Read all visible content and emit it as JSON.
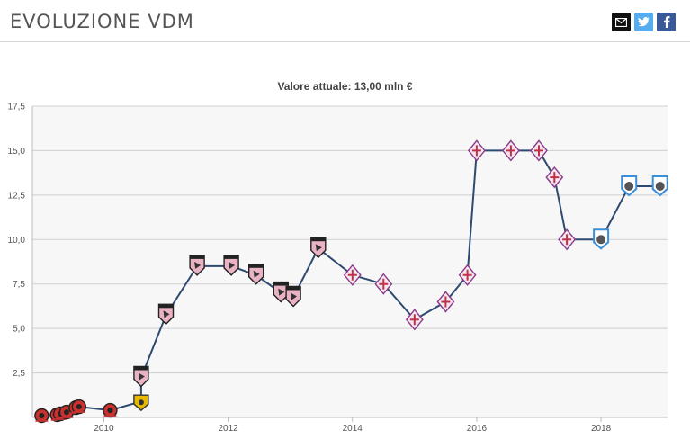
{
  "header": {
    "title": "EVOLUZIONE VDM",
    "share": {
      "email_icon": "email-icon",
      "twitter_icon": "twitter-icon",
      "facebook_icon": "facebook-icon"
    }
  },
  "colors": {
    "line": "#2e4a70",
    "grid": "#d0d0d0",
    "plot_bg": "#f7f7f7",
    "palermo": "#e9b3c4",
    "fiorentina": "#8a3a8a",
    "atalanta": "#3b8fd8",
    "reggina": "#c8312e",
    "juve_stabia": "#e6b800"
  },
  "chart_data": {
    "type": "line",
    "title": "Valore attuale: 13,00 mln €",
    "xlabel": "",
    "ylabel": "",
    "xlim": [
      2008.85,
      2019.07
    ],
    "ylim": [
      0,
      17.5
    ],
    "x_ticks": [
      2010,
      2012,
      2014,
      2016,
      2018
    ],
    "x_tick_labels": [
      "2010",
      "2012",
      "2014",
      "2016",
      "2018"
    ],
    "y_ticks": [
      2.5,
      5.0,
      7.5,
      10.0,
      12.5,
      15.0,
      17.5
    ],
    "y_tick_labels": [
      "2,5",
      "5,0",
      "7,5",
      "10,0",
      "12,5",
      "15,0",
      "17,5"
    ],
    "grid": true,
    "series": [
      {
        "points": [
          {
            "x": 2009.0,
            "y": 0.1,
            "club": "reggina"
          },
          {
            "x": 2009.25,
            "y": 0.15,
            "club": "reggina"
          },
          {
            "x": 2009.3,
            "y": 0.2,
            "club": "reggina"
          },
          {
            "x": 2009.4,
            "y": 0.3,
            "club": "reggina"
          },
          {
            "x": 2009.55,
            "y": 0.55,
            "club": "reggina"
          },
          {
            "x": 2009.6,
            "y": 0.6,
            "club": "reggina"
          },
          {
            "x": 2010.1,
            "y": 0.4,
            "club": "reggina"
          },
          {
            "x": 2010.6,
            "y": 0.9,
            "club": "juve_stabia"
          },
          {
            "x": 2010.6,
            "y": 2.25,
            "club": "palermo"
          },
          {
            "x": 2011.0,
            "y": 5.75,
            "club": "palermo"
          },
          {
            "x": 2011.5,
            "y": 8.5,
            "club": "palermo"
          },
          {
            "x": 2012.05,
            "y": 8.5,
            "club": "palermo"
          },
          {
            "x": 2012.45,
            "y": 8.0,
            "club": "palermo"
          },
          {
            "x": 2012.85,
            "y": 7.0,
            "club": "palermo"
          },
          {
            "x": 2013.05,
            "y": 6.75,
            "club": "palermo"
          },
          {
            "x": 2013.45,
            "y": 9.5,
            "club": "palermo"
          },
          {
            "x": 2014.0,
            "y": 8.0,
            "club": "fiorentina"
          },
          {
            "x": 2014.5,
            "y": 7.5,
            "club": "fiorentina"
          },
          {
            "x": 2015.0,
            "y": 5.5,
            "club": "fiorentina"
          },
          {
            "x": 2015.5,
            "y": 6.5,
            "club": "fiorentina"
          },
          {
            "x": 2015.85,
            "y": 8.0,
            "club": "fiorentina"
          },
          {
            "x": 2016.0,
            "y": 15.0,
            "club": "fiorentina"
          },
          {
            "x": 2016.55,
            "y": 15.0,
            "club": "fiorentina"
          },
          {
            "x": 2017.0,
            "y": 15.0,
            "club": "fiorentina"
          },
          {
            "x": 2017.25,
            "y": 13.5,
            "club": "fiorentina"
          },
          {
            "x": 2017.45,
            "y": 10.0,
            "club": "fiorentina"
          },
          {
            "x": 2018.0,
            "y": 10.0,
            "club": "atalanta"
          },
          {
            "x": 2018.45,
            "y": 13.0,
            "club": "atalanta"
          },
          {
            "x": 2018.95,
            "y": 13.0,
            "club": "atalanta"
          }
        ]
      }
    ]
  }
}
